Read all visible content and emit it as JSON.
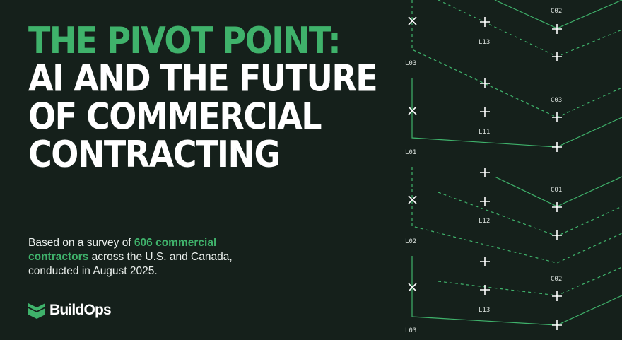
{
  "headline": {
    "line1": "The Pivot Point:",
    "line2": "AI and the Future",
    "line3": "of Commercial",
    "line4": "Contracting"
  },
  "description": {
    "prefix": "Based on a survey of ",
    "highlight": "606 commercial contractors",
    "suffix": " across the U.S. and Canada, conducted in August 2025."
  },
  "brand": {
    "name": "BuildOps",
    "icon": "buildops-chevron-logo-icon"
  },
  "pattern": {
    "labels": {
      "c02_top": "C02",
      "l13_top": "L13",
      "l03_top": "L03",
      "c03": "C03",
      "l11": "L11",
      "l01": "L01",
      "c01": "C01",
      "l12": "L12",
      "l02": "L02",
      "c02_bottom": "C02",
      "l13_bottom": "L13",
      "l03_bottom": "L03"
    }
  },
  "colors": {
    "background": "#15201b",
    "accent": "#3fb26b",
    "text": "#ffffff"
  }
}
